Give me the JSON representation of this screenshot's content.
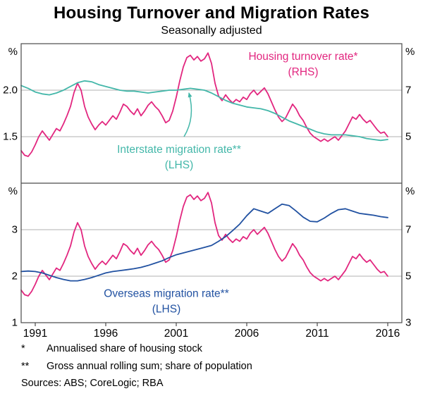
{
  "title": "Housing Turnover and Migration Rates",
  "subtitle": "Seasonally adjusted",
  "footnotes": [
    {
      "marker": "*",
      "text": "Annualised share of housing stock"
    },
    {
      "marker": "**",
      "text": "Gross annual rolling sum; share of population"
    }
  ],
  "sources": "Sources: ABS; CoreLogic; RBA",
  "chart_data": {
    "type": "line",
    "x_range": [
      1990,
      2017
    ],
    "x_ticks": [
      1991,
      1996,
      2001,
      2006,
      2011,
      2016
    ],
    "colors": {
      "pink": "#e2267f",
      "teal": "#43b7a9",
      "blue": "#2151a1",
      "grid": "#b0b0b0",
      "frame": "#4a4a4a",
      "text": "#000000"
    },
    "panels": [
      {
        "unit_left": "%",
        "unit_right": "%",
        "lhs_range": [
          1.0,
          2.5
        ],
        "rhs_range": [
          3,
          9
        ],
        "axis_labels": [
          {
            "lhs": 2.0,
            "left": "2.0",
            "right": "7",
            "grid": true
          },
          {
            "lhs": 1.5,
            "left": "1.5",
            "right": "5",
            "grid": true
          }
        ]
      },
      {
        "unit_left": "%",
        "unit_right": "%",
        "lhs_range": [
          1,
          4
        ],
        "rhs_range": [
          3,
          9
        ],
        "axis_labels": [
          {
            "lhs": 3,
            "left": "3",
            "right": "7",
            "grid": true
          },
          {
            "lhs": 2,
            "left": "2",
            "right": "5",
            "grid": true
          },
          {
            "lhs": 1,
            "left": "1",
            "right": "3",
            "grid": false
          }
        ]
      }
    ],
    "series": [
      {
        "name": "housing-turnover",
        "label": "Housing turnover rate*",
        "axis": "rhs",
        "panels": [
          0,
          1
        ],
        "color": "pink",
        "x_start": 1990,
        "x_step": 0.25,
        "values": [
          4.4,
          4.2,
          4.15,
          4.35,
          4.65,
          5.0,
          5.25,
          5.05,
          4.85,
          5.1,
          5.35,
          5.25,
          5.55,
          5.9,
          6.3,
          6.9,
          7.3,
          7.0,
          6.3,
          5.85,
          5.55,
          5.3,
          5.5,
          5.65,
          5.5,
          5.7,
          5.9,
          5.75,
          6.05,
          6.4,
          6.3,
          6.1,
          5.95,
          6.2,
          5.9,
          6.1,
          6.35,
          6.5,
          6.3,
          6.15,
          5.9,
          5.6,
          5.7,
          6.1,
          6.7,
          7.4,
          8.0,
          8.4,
          8.5,
          8.3,
          8.45,
          8.25,
          8.35,
          8.6,
          8.15,
          7.3,
          6.75,
          6.55,
          6.8,
          6.6,
          6.45,
          6.6,
          6.5,
          6.7,
          6.6,
          6.85,
          7.0,
          6.8,
          6.95,
          7.1,
          6.85,
          6.5,
          6.15,
          5.85,
          5.65,
          5.8,
          6.1,
          6.4,
          6.2,
          5.9,
          5.7,
          5.4,
          5.15,
          5.0,
          4.9,
          4.8,
          4.9,
          4.8,
          4.9,
          5.0,
          4.85,
          5.05,
          5.25,
          5.55,
          5.85,
          5.75,
          5.95,
          5.75,
          5.6,
          5.7,
          5.5,
          5.3,
          5.15,
          5.2,
          5.0
        ]
      },
      {
        "name": "interstate-migration",
        "label": "Interstate migration rate**",
        "axis": "lhs",
        "panels": [
          0
        ],
        "color": "teal",
        "x_start": 1990,
        "x_step": 0.5,
        "values": [
          2.05,
          2.02,
          1.98,
          1.96,
          1.95,
          1.97,
          2.0,
          2.04,
          2.08,
          2.1,
          2.09,
          2.06,
          2.04,
          2.02,
          2.0,
          1.99,
          1.99,
          1.98,
          1.97,
          1.98,
          1.99,
          2.0,
          2.0,
          2.01,
          2.02,
          2.01,
          2.0,
          1.97,
          1.93,
          1.89,
          1.86,
          1.84,
          1.82,
          1.81,
          1.8,
          1.78,
          1.75,
          1.71,
          1.67,
          1.64,
          1.61,
          1.58,
          1.55,
          1.53,
          1.52,
          1.52,
          1.52,
          1.51,
          1.5,
          1.48,
          1.47,
          1.46,
          1.47
        ]
      },
      {
        "name": "overseas-migration",
        "label": "Overseas migration rate**",
        "axis": "lhs",
        "panels": [
          1
        ],
        "color": "blue",
        "x_start": 1990,
        "x_step": 0.5,
        "values": [
          2.1,
          2.11,
          2.1,
          2.07,
          2.02,
          1.97,
          1.93,
          1.9,
          1.9,
          1.93,
          1.97,
          2.02,
          2.07,
          2.1,
          2.12,
          2.14,
          2.16,
          2.19,
          2.23,
          2.28,
          2.33,
          2.4,
          2.46,
          2.5,
          2.54,
          2.58,
          2.62,
          2.66,
          2.75,
          2.85,
          2.98,
          3.12,
          3.3,
          3.45,
          3.4,
          3.35,
          3.45,
          3.55,
          3.52,
          3.4,
          3.27,
          3.18,
          3.17,
          3.25,
          3.35,
          3.43,
          3.45,
          3.4,
          3.35,
          3.33,
          3.31,
          3.28,
          3.26
        ]
      }
    ],
    "annotations": [
      {
        "panel": 0,
        "axis": "lhs",
        "x": 2010.0,
        "y": 2.36,
        "color": "pink",
        "lines": [
          "Housing turnover rate*",
          "(RHS)"
        ]
      },
      {
        "panel": 0,
        "axis": "lhs",
        "x": 2001.2,
        "y": 1.36,
        "color": "teal",
        "lines": [
          "Interstate migration rate**",
          "(LHS)"
        ]
      },
      {
        "panel": 1,
        "axis": "lhs",
        "x": 2000.3,
        "y": 1.62,
        "color": "blue",
        "lines": [
          "Overseas migration rate**",
          "(LHS)"
        ]
      }
    ],
    "arrow": {
      "panel": 0,
      "axis": "lhs",
      "from": [
        2001.55,
        1.5
      ],
      "to": [
        2001.9,
        1.97
      ],
      "color": "teal"
    }
  }
}
